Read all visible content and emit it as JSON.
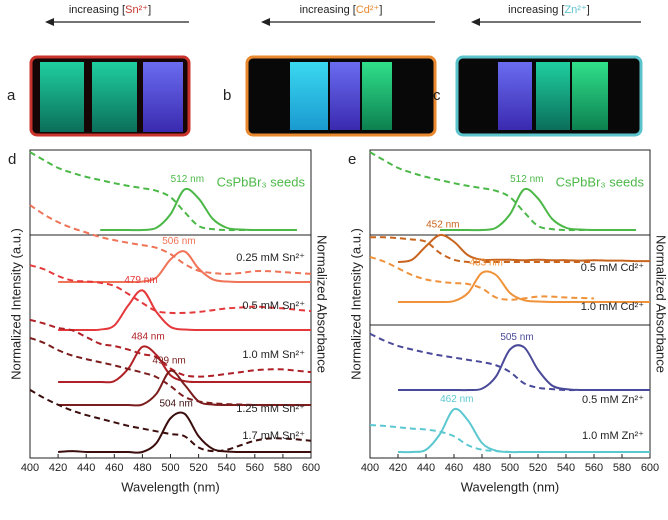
{
  "photos": [
    {
      "label": "a",
      "prefix": "increasing [",
      "ion": "Sn²⁺",
      "suffix": "]",
      "color": "#c8332c"
    },
    {
      "label": "b",
      "prefix": "increasing [",
      "ion": "Cd²⁺",
      "suffix": "]",
      "color": "#e8892f"
    },
    {
      "label": "c",
      "prefix": "increasing [",
      "ion": "Zn²⁺",
      "suffix": "]",
      "color": "#5bc3cc"
    }
  ],
  "chart_data": [
    {
      "type": "line",
      "label": "d",
      "xlabel": "Wavelength (nm)",
      "ylabel": "Normalized Intensity (a.u.)",
      "y2label": "Normalized Absorbance",
      "xlim": [
        400,
        600
      ],
      "xticks": [
        400,
        420,
        440,
        460,
        480,
        500,
        520,
        540,
        560,
        580,
        600
      ],
      "x": [
        400,
        410,
        420,
        430,
        440,
        450,
        460,
        470,
        480,
        490,
        500,
        510,
        520,
        530,
        540,
        550,
        560,
        570,
        580,
        590,
        600
      ],
      "series": [
        {
          "name": "CsPbBr₃ seeds",
          "color": "#4cb848",
          "peak": 512,
          "peak_label": "512 nm",
          "values": [
            null,
            null,
            null,
            null,
            null,
            0,
            0,
            0,
            0,
            0.05,
            0.35,
            0.9,
            0.7,
            0.25,
            0.05,
            0.01,
            0,
            0,
            0,
            0,
            null
          ],
          "abs_values": [
            1.73,
            1.55,
            1.38,
            1.27,
            1.18,
            1.11,
            1.04,
            0.98,
            0.93,
            0.87,
            0.73,
            0.4,
            0.09,
            0.02,
            0,
            0,
            0,
            0,
            0,
            0,
            null
          ]
        },
        {
          "name": "0.25 mM Sn²⁺",
          "color": "#ef7357",
          "peak": 506,
          "peak_label": "506 nm",
          "values": [
            null,
            null,
            0,
            0,
            0,
            0,
            0,
            0,
            0.01,
            0.1,
            0.5,
            0.68,
            0.3,
            0.06,
            0.01,
            0,
            0,
            0,
            0,
            0,
            0
          ],
          "abs_values": [
            1.71,
            1.5,
            1.33,
            1.2,
            1.1,
            1.0,
            0.93,
            0.87,
            0.82,
            0.76,
            0.62,
            0.4,
            0.25,
            0.2,
            0.18,
            0.2,
            0.24,
            0.24,
            0.22,
            0.2,
            0.18
          ]
        },
        {
          "name": "0.5 mM Sn²⁺",
          "color": "#e5383b",
          "peak": 479,
          "peak_label": "479 nm",
          "values": [
            null,
            null,
            0,
            0,
            0,
            0.01,
            0.1,
            0.55,
            0.88,
            0.4,
            0.07,
            0.01,
            0,
            0,
            0,
            0,
            0,
            0,
            0,
            0,
            0
          ],
          "abs_values": [
            1.44,
            1.35,
            1.2,
            1.1,
            1.08,
            1.05,
            0.98,
            0.8,
            0.6,
            0.42,
            0.38,
            0.38,
            0.4,
            0.44,
            0.48,
            0.5,
            0.52,
            0.5,
            0.48,
            0.45,
            0.42
          ]
        },
        {
          "name": "1.0 mM Sn²⁺",
          "color": "#b02027",
          "peak": 484,
          "peak_label": "484 nm",
          "values": [
            null,
            null,
            0,
            0,
            0,
            0,
            0.02,
            0.3,
            0.78,
            0.6,
            0.15,
            0.02,
            0,
            0,
            0,
            0,
            0,
            0,
            0,
            0,
            0
          ],
          "abs_values": [
            1.38,
            1.3,
            1.2,
            1.15,
            1.0,
            0.85,
            0.8,
            0.72,
            0.62,
            0.55,
            0.3,
            0.15,
            0.12,
            0.14,
            0.18,
            0.22,
            0.26,
            0.28,
            0.28,
            0.25,
            0.22
          ]
        },
        {
          "name": "1.25 mM Sn²⁺",
          "color": "#7b1d1d",
          "peak": 499,
          "peak_label": "499 nm",
          "values": [
            null,
            null,
            0,
            0,
            0,
            0,
            0,
            0,
            0.01,
            0.25,
            0.76,
            0.45,
            0.08,
            0.01,
            0,
            0,
            0,
            0,
            0,
            0,
            0
          ],
          "abs_values": [
            1.49,
            1.38,
            1.22,
            1.1,
            1.02,
            0.95,
            0.88,
            0.8,
            0.72,
            0.62,
            0.42,
            0.18,
            0.08,
            0.04,
            0.02,
            0.01,
            0,
            null,
            null,
            null,
            null
          ]
        },
        {
          "name": "1.7 mM Sn²⁺",
          "color": "#3b0d0d",
          "peak": 504,
          "peak_label": "504 nm",
          "values": [
            null,
            null,
            0,
            0.02,
            0,
            0,
            0,
            0,
            0,
            0.2,
            0.75,
            0.85,
            0.35,
            0.07,
            0.01,
            0,
            0,
            0,
            0,
            0,
            0
          ],
          "abs_values": [
            1.38,
            1.2,
            1.05,
            0.92,
            0.82,
            0.74,
            0.66,
            0.58,
            0.52,
            0.46,
            0.4,
            0.35,
            0.1,
            0.02,
            0.05,
            0.15,
            0.25,
            0.3,
            0.3,
            0.28,
            0.25
          ]
        }
      ]
    },
    {
      "type": "line",
      "label": "e",
      "xlabel": "Wavelength (nm)",
      "ylabel": "Normalized Intensity (a.u.)",
      "y2label": "Normalized Absorbance",
      "xlim": [
        400,
        600
      ],
      "xticks": [
        400,
        420,
        440,
        460,
        480,
        500,
        520,
        540,
        560,
        580,
        600
      ],
      "x": [
        400,
        410,
        420,
        430,
        440,
        450,
        460,
        470,
        480,
        490,
        500,
        510,
        520,
        530,
        540,
        550,
        560,
        570,
        580,
        590,
        600
      ],
      "series": [
        {
          "name": "CsPbBr₃ seeds",
          "color": "#4cb848",
          "peak": 512,
          "peak_label": "512 nm",
          "values": [
            null,
            null,
            null,
            null,
            null,
            0,
            0,
            0,
            0,
            0.05,
            0.35,
            0.9,
            0.7,
            0.25,
            0.05,
            0.01,
            0,
            0,
            0,
            0,
            null
          ],
          "abs_values": [
            1.73,
            1.55,
            1.38,
            1.27,
            1.18,
            1.11,
            1.04,
            0.98,
            0.93,
            0.87,
            0.73,
            0.4,
            0.09,
            0.02,
            0,
            0,
            0,
            0,
            0,
            0,
            null
          ]
        },
        {
          "name": "0.5 mM Cd²⁺",
          "color": "#c8641e",
          "peak": 452,
          "peak_label": "452 nm",
          "values": [
            null,
            null,
            0,
            0.05,
            0.35,
            0.6,
            0.45,
            0.15,
            0.05,
            0.05,
            0.05,
            0.04,
            0.05,
            0.04,
            0.04,
            0.03,
            0.04,
            0.03,
            0.03,
            0.02,
            0.02
          ],
          "abs_values": [
            0.55,
            0.55,
            0.53,
            0.5,
            0.45,
            0.2,
            0.05,
            0,
            0,
            0,
            0,
            0,
            0,
            0,
            0,
            0,
            0,
            null,
            null,
            null,
            null
          ]
        },
        {
          "name": "1.0 mM Cd²⁺",
          "color": "#f0923a",
          "peak": 483,
          "peak_label": "483 nm",
          "values": [
            null,
            null,
            0,
            0,
            0,
            0,
            0.02,
            0.2,
            0.65,
            0.6,
            0.2,
            0.04,
            0.01,
            0,
            0,
            0,
            0,
            0,
            0,
            0,
            0
          ],
          "abs_values": [
            1.0,
            0.9,
            0.75,
            0.6,
            0.5,
            0.45,
            0.42,
            0.4,
            0.3,
            0.1,
            0.05,
            0.08,
            0.12,
            0.12,
            0.1,
            0.09,
            0.08,
            null,
            null,
            null,
            null
          ]
        },
        {
          "name": "0.5 mM Zn²⁺",
          "color": "#4a4a9a",
          "peak": 505,
          "peak_label": "505 nm",
          "values": [
            null,
            null,
            0,
            0,
            0,
            0,
            0,
            0,
            0.03,
            0.3,
            0.9,
            0.95,
            0.45,
            0.1,
            0.02,
            0,
            0,
            0,
            0,
            0,
            0
          ],
          "abs_values": [
            1.25,
            1.1,
            0.98,
            0.9,
            0.83,
            0.77,
            0.72,
            0.67,
            0.62,
            0.55,
            0.4,
            0.15,
            0.05,
            0.02,
            0,
            0,
            null,
            null,
            null,
            null,
            null
          ]
        },
        {
          "name": "1.0 mM Zn²⁺",
          "color": "#5bc8d0",
          "peak": 462,
          "peak_label": "462 nm",
          "values": [
            null,
            null,
            0,
            0,
            0.05,
            0.4,
            0.95,
            0.7,
            0.2,
            0.03,
            0,
            0,
            0,
            0,
            0,
            0,
            0,
            0,
            0,
            0,
            0
          ],
          "abs_values": [
            0.6,
            0.58,
            0.55,
            0.52,
            0.5,
            0.45,
            0.35,
            0.15,
            0.05,
            0.02,
            0,
            0,
            0,
            0,
            0,
            0,
            null,
            null,
            null,
            null,
            null
          ]
        }
      ]
    }
  ]
}
